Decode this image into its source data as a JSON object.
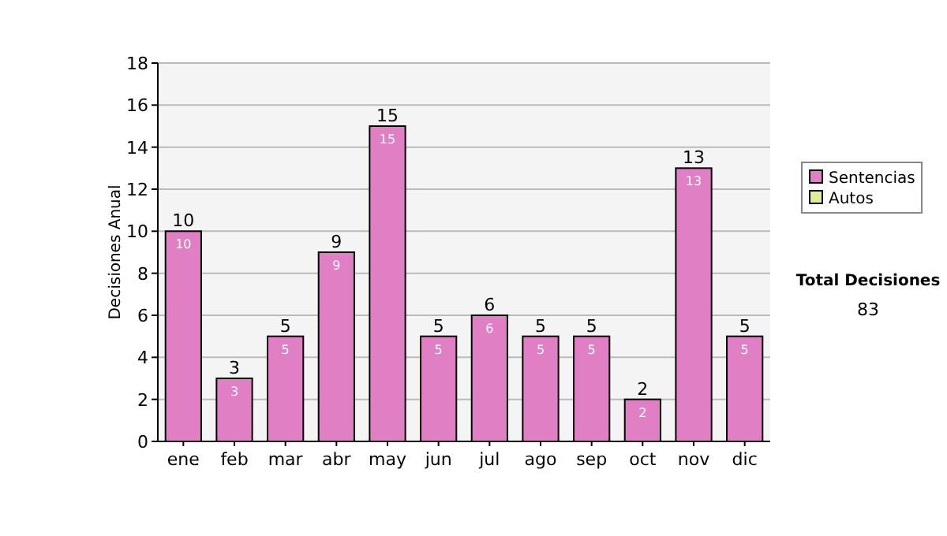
{
  "chart_data": {
    "type": "bar",
    "stacked": true,
    "ylabel": "Decisiones Anual",
    "categories": [
      "ene",
      "feb",
      "mar",
      "abr",
      "may",
      "jun",
      "jul",
      "ago",
      "sep",
      "oct",
      "nov",
      "dic"
    ],
    "series": [
      {
        "name": "Sentencias",
        "color": "#e07fc3",
        "values": [
          10,
          3,
          5,
          9,
          15,
          5,
          6,
          5,
          5,
          2,
          13,
          5
        ],
        "value_labels": [
          "10",
          "3",
          "5",
          "9",
          "15",
          "5",
          "6",
          "5",
          "5",
          "2",
          "13",
          "5"
        ]
      },
      {
        "name": "Autos",
        "color": "#ddee99",
        "values": [
          0,
          0,
          0,
          0,
          0,
          0,
          0,
          0,
          0,
          0,
          0,
          0
        ],
        "value_labels": [
          null,
          null,
          null,
          null,
          null,
          null,
          null,
          null,
          null,
          null,
          null,
          null
        ]
      }
    ],
    "ylim": [
      0,
      18
    ],
    "yticks": [
      0,
      2,
      4,
      6,
      8,
      10,
      12,
      14,
      16,
      18
    ],
    "grid": "y",
    "legend": "right",
    "totals": [
      "10",
      "3",
      "5",
      "9",
      "15",
      "5",
      "6",
      "5",
      "5",
      "2",
      "13",
      "5"
    ],
    "annotations": [
      "Total Decisiones",
      "83"
    ]
  }
}
